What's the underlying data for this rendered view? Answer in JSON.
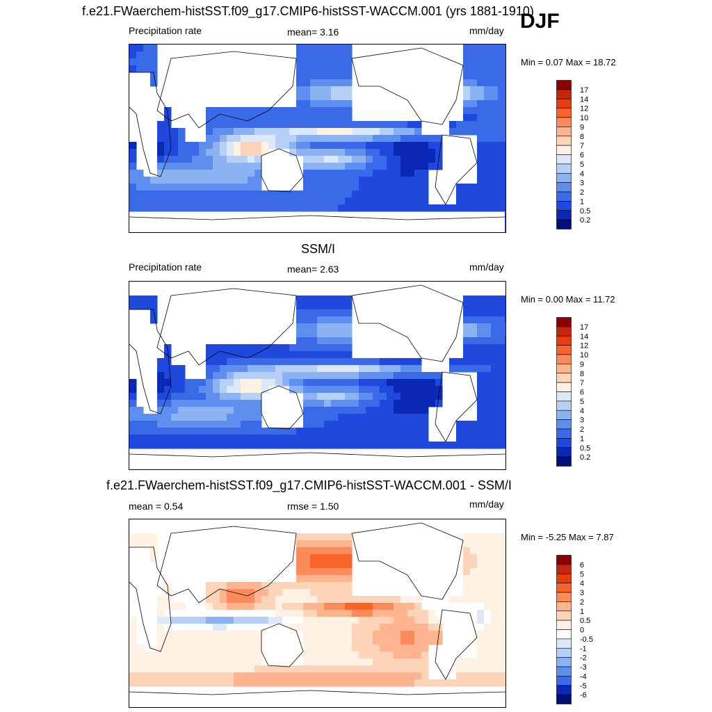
{
  "header": {
    "run_title": "f.e21.FWaerchem-histSST.f09_g17.CMIP6-histSST-WACCM.001 (yrs 1881-1910)",
    "season": "DJF"
  },
  "chart_data": [
    {
      "type": "heatmap",
      "title": "",
      "left_label": "Precipitation rate",
      "center_label": "mean=   3.16",
      "mean": 3.16,
      "units": "mm/day",
      "minmax_text": "Min =   0.07 Max =  18.72",
      "min": 0.07,
      "max": 18.72,
      "colorbar": {
        "levels": [
          "17",
          "14",
          "12",
          "10",
          "9",
          "8",
          "7",
          "6",
          "5",
          "4",
          "3",
          "2",
          "1",
          "0.5",
          "0.2"
        ],
        "colors": [
          "#8b0000",
          "#c3260a",
          "#e83c0f",
          "#f8642a",
          "#fb8b5a",
          "#fdb48f",
          "#fdd4b8",
          "#fff1e3",
          "#dbe9fb",
          "#b6d0f6",
          "#8bb3f2",
          "#5f8fee",
          "#3a6ae8",
          "#1f48dc",
          "#0a28b4",
          "#00107a"
        ]
      }
    },
    {
      "type": "heatmap",
      "title": "SSM/I",
      "left_label": "Precipitation rate",
      "center_label": "mean=   2.63",
      "mean": 2.63,
      "units": "mm/day",
      "minmax_text": "Min =   0.00 Max =  11.72",
      "min": 0.0,
      "max": 11.72,
      "colorbar": {
        "levels": [
          "17",
          "14",
          "12",
          "10",
          "9",
          "8",
          "7",
          "6",
          "5",
          "4",
          "3",
          "2",
          "1",
          "0.5",
          "0.2"
        ],
        "colors": [
          "#8b0000",
          "#c3260a",
          "#e83c0f",
          "#f8642a",
          "#fb8b5a",
          "#fdb48f",
          "#fdd4b8",
          "#fff1e3",
          "#dbe9fb",
          "#b6d0f6",
          "#8bb3f2",
          "#5f8fee",
          "#3a6ae8",
          "#1f48dc",
          "#0a28b4",
          "#00107a"
        ]
      }
    },
    {
      "type": "heatmap",
      "title": "f.e21.FWaerchem-histSST.f09_g17.CMIP6-histSST-WACCM.001 - SSM/I",
      "left_label": "mean =   0.54",
      "center_label": "rmse =   1.50",
      "mean": 0.54,
      "rmse": 1.5,
      "units": "mm/day",
      "minmax_text": "Min =  -5.25 Max =   7.87",
      "min": -5.25,
      "max": 7.87,
      "colorbar": {
        "levels": [
          "6",
          "5",
          "4",
          "3",
          "2",
          "1",
          "0.5",
          "0",
          "-0.5",
          "-1",
          "-2",
          "-3",
          "-4",
          "-5",
          "-6"
        ],
        "colors": [
          "#8b0000",
          "#c3260a",
          "#e83c0f",
          "#f8642a",
          "#fb8b5a",
          "#fdb48f",
          "#fdd4b8",
          "#fff1e3",
          "#ffffff",
          "#dbe9fb",
          "#b6d0f6",
          "#8bb3f2",
          "#5f8fee",
          "#3a6ae8",
          "#0a28b4",
          "#00107a"
        ]
      }
    }
  ]
}
